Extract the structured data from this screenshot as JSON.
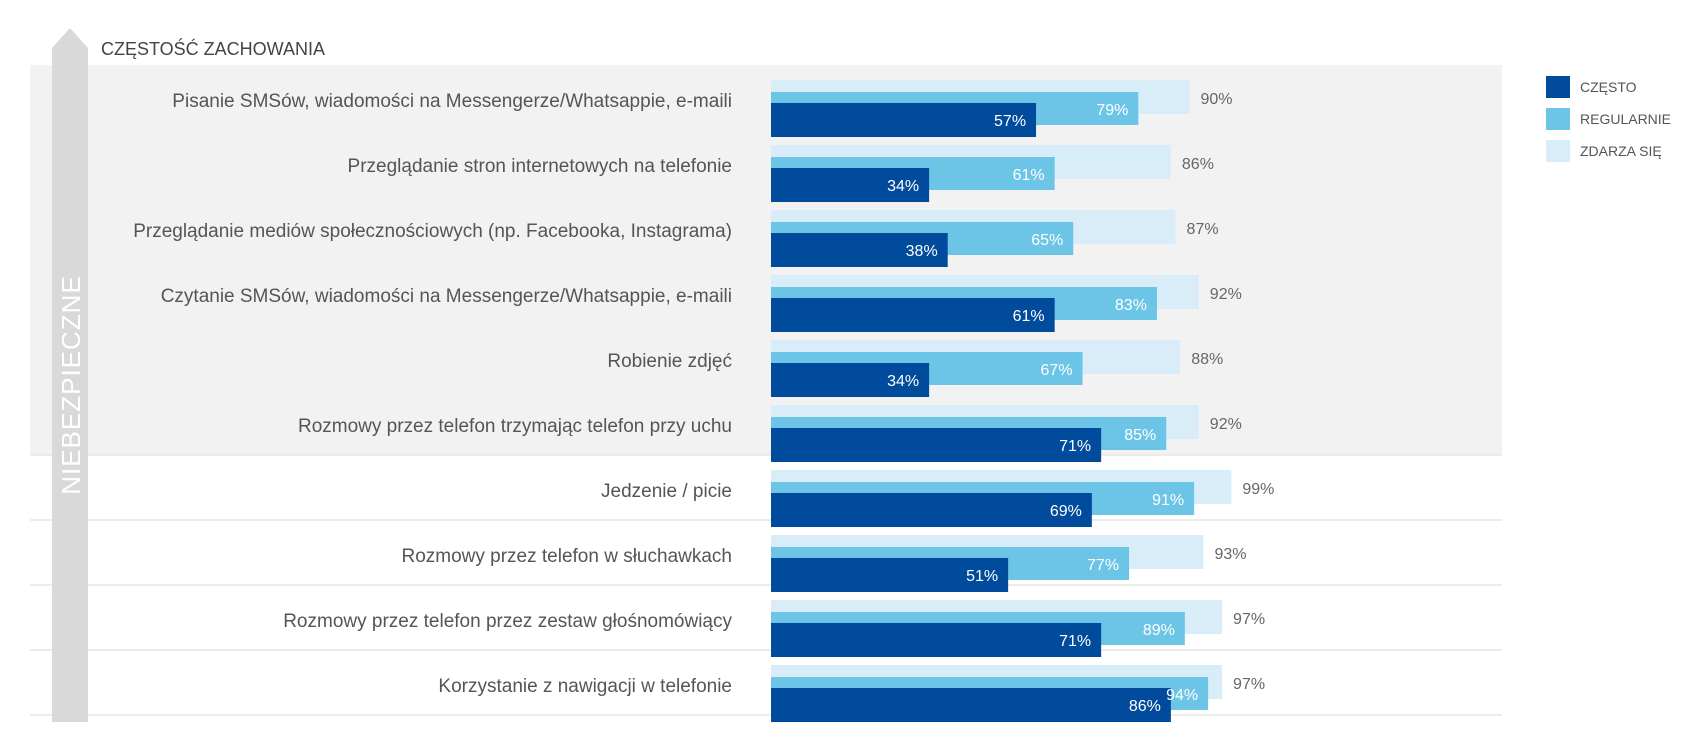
{
  "chart_data": {
    "type": "bar",
    "orientation": "horizontal",
    "title": "CZĘSTOŚĆ ZACHOWANIA",
    "axis_label": "NIEBEZPIECZNE",
    "categories": [
      "Pisanie  SMSów, wiadomości na Messengerze/Whatsappie, e-maili",
      "Przeglądanie stron internetowych na telefonie",
      "Przeglądanie mediów społecznościowych (np. Facebooka, Instagrama)",
      "Czytanie SMSów, wiadomości na Messengerze/Whatsappie, e-maili",
      "Robienie zdjęć",
      "Rozmowy przez telefon trzymając telefon przy uchu",
      "Jedzenie / picie",
      "Rozmowy przez telefon w słuchawkach",
      "Rozmowy przez telefon przez zestaw głośnomówiący",
      "Korzystanie z nawigacji w telefonie"
    ],
    "highlighted_rows": 6,
    "series": [
      {
        "name": "CZĘSTO",
        "color": "#004b9c",
        "values": [
          57,
          34,
          38,
          61,
          34,
          71,
          69,
          51,
          71,
          86
        ]
      },
      {
        "name": "REGULARNIE",
        "color": "#6cc5e6",
        "values": [
          79,
          61,
          65,
          83,
          67,
          85,
          91,
          77,
          89,
          94
        ]
      },
      {
        "name": "ZDARZA SIĘ",
        "color": "#d9edf8",
        "values": [
          90,
          86,
          87,
          92,
          88,
          92,
          99,
          93,
          97,
          97
        ]
      }
    ],
    "value_suffix": "%",
    "xlim": [
      0,
      100
    ],
    "legend_position": "top-right"
  }
}
